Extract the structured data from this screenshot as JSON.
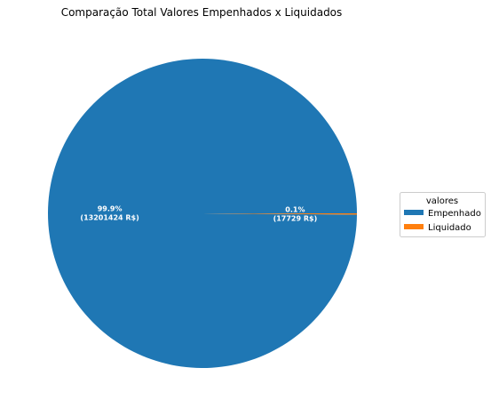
{
  "chart_data": {
    "type": "pie",
    "title": "Comparação Total Valores Empenhados x Liquidados",
    "categories": [
      "Empenhado",
      "Liquidado"
    ],
    "values": [
      13201424,
      17729
    ],
    "labels": [
      {
        "percent": "99.9%",
        "amount": "(13201424 R$)"
      },
      {
        "percent": "0.1%",
        "amount": "(17729 R$)"
      }
    ],
    "colors": [
      "#1f77b4",
      "#ff7f0e"
    ],
    "legend": {
      "title": "valores",
      "placement": "right"
    }
  }
}
